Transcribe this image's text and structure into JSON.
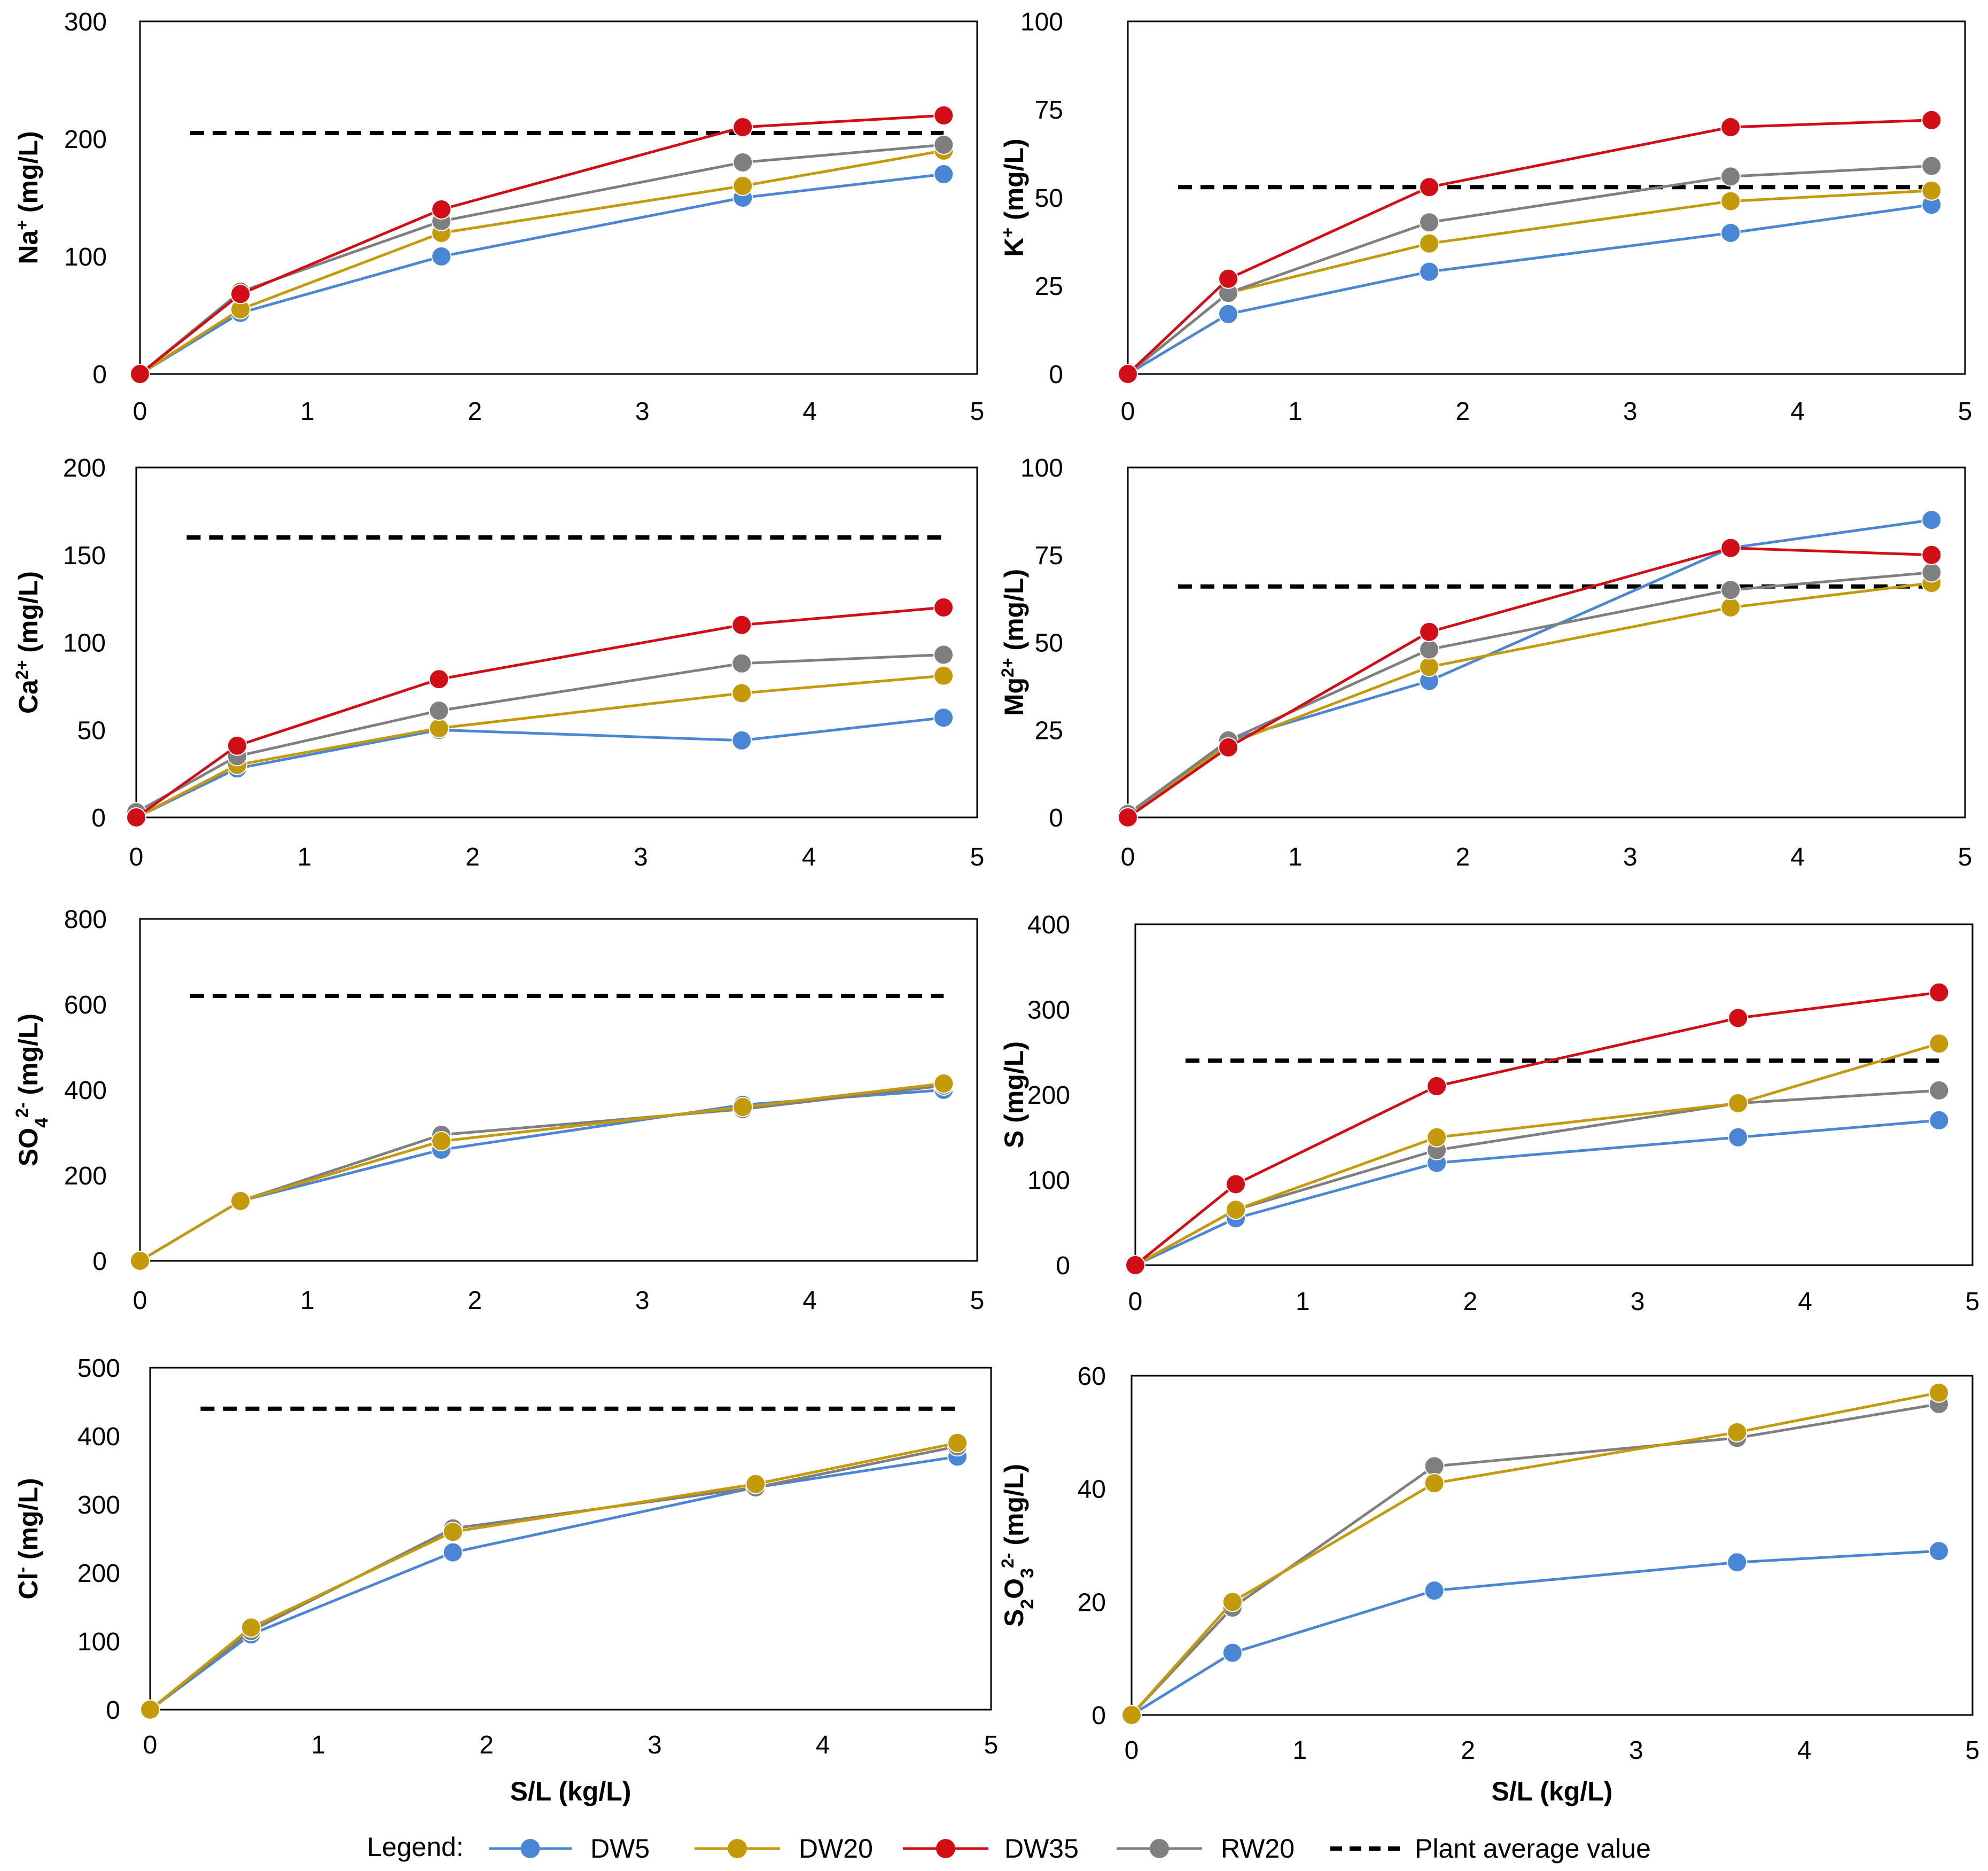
{
  "figure": {
    "legend": {
      "prefix": "Legend:",
      "items": [
        {
          "key": "DW5",
          "label": "DW5"
        },
        {
          "key": "DW20",
          "label": "DW20"
        },
        {
          "key": "DW35",
          "label": "DW35"
        },
        {
          "key": "RW20",
          "label": "RW20"
        },
        {
          "key": "plant",
          "label": "Plant average value"
        }
      ]
    },
    "colors": {
      "DW5": "#4A86D6",
      "DW20": "#C49A0B",
      "DW35": "#D10E15",
      "RW20": "#7F7F7F",
      "plant": "#000000"
    }
  },
  "chart_data": [
    {
      "id": "na",
      "type": "line",
      "ylabel": {
        "main": "Na",
        "sup": "+",
        "unit": " (mg/L)"
      },
      "xlabel": "",
      "xlim": [
        0,
        5
      ],
      "ylim": [
        0,
        300
      ],
      "xticks": [
        "0",
        "1",
        "2",
        "3",
        "4",
        "5"
      ],
      "yticks": [
        "0",
        "100",
        "200",
        "300"
      ],
      "x": [
        0,
        0.6,
        1.8,
        3.6,
        4.8
      ],
      "series": [
        {
          "name": "DW5",
          "values": [
            0,
            52,
            100,
            150,
            170
          ]
        },
        {
          "name": "DW20",
          "values": [
            0,
            55,
            120,
            160,
            190
          ]
        },
        {
          "name": "RW20",
          "values": [
            0,
            70,
            130,
            180,
            195
          ]
        },
        {
          "name": "DW35",
          "values": [
            0,
            68,
            140,
            210,
            220
          ]
        }
      ],
      "plant_average": 205
    },
    {
      "id": "k",
      "type": "line",
      "ylabel": {
        "main": "K",
        "sup": "+",
        "unit": " (mg/L)"
      },
      "xlabel": "",
      "xlim": [
        0,
        5
      ],
      "ylim": [
        0,
        100
      ],
      "xticks": [
        "0",
        "1",
        "2",
        "3",
        "4",
        "5"
      ],
      "yticks": [
        "0",
        "25",
        "50",
        "75",
        "100"
      ],
      "x": [
        0,
        0.6,
        1.8,
        3.6,
        4.8
      ],
      "series": [
        {
          "name": "DW5",
          "values": [
            0,
            17,
            29,
            40,
            48
          ]
        },
        {
          "name": "DW20",
          "values": [
            0,
            23,
            37,
            49,
            52
          ]
        },
        {
          "name": "RW20",
          "values": [
            0,
            23,
            43,
            56,
            59
          ]
        },
        {
          "name": "DW35",
          "values": [
            0,
            27,
            53,
            70,
            72
          ]
        }
      ],
      "plant_average": 53
    },
    {
      "id": "ca",
      "type": "line",
      "ylabel": {
        "main": "Ca",
        "sup": "2+",
        "unit": " (mg/L)"
      },
      "xlabel": "",
      "xlim": [
        0,
        5
      ],
      "ylim": [
        0,
        200
      ],
      "xticks": [
        "0",
        "1",
        "2",
        "3",
        "4",
        "5"
      ],
      "yticks": [
        "0",
        "50",
        "100",
        "150",
        "200"
      ],
      "x": [
        0,
        0.6,
        1.8,
        3.6,
        4.8
      ],
      "series": [
        {
          "name": "DW5",
          "values": [
            0,
            28,
            50,
            44,
            57
          ]
        },
        {
          "name": "DW20",
          "values": [
            0,
            30,
            51,
            71,
            81
          ]
        },
        {
          "name": "RW20",
          "values": [
            3,
            35,
            61,
            88,
            93
          ]
        },
        {
          "name": "DW35",
          "values": [
            0,
            41,
            79,
            110,
            120
          ]
        }
      ],
      "plant_average": 160
    },
    {
      "id": "mg",
      "type": "line",
      "ylabel": {
        "main": "Mg",
        "sup": "2+",
        "unit": " (mg/L)"
      },
      "xlabel": "",
      "xlim": [
        0,
        5
      ],
      "ylim": [
        0,
        100
      ],
      "xticks": [
        "0",
        "1",
        "2",
        "3",
        "4",
        "5"
      ],
      "yticks": [
        "0",
        "25",
        "50",
        "75",
        "100"
      ],
      "x": [
        0,
        0.6,
        1.8,
        3.6,
        4.8
      ],
      "series": [
        {
          "name": "DW5",
          "values": [
            0,
            22,
            39,
            77,
            85
          ]
        },
        {
          "name": "DW20",
          "values": [
            0,
            21,
            43,
            60,
            67
          ]
        },
        {
          "name": "RW20",
          "values": [
            1,
            22,
            48,
            65,
            70
          ]
        },
        {
          "name": "DW35",
          "values": [
            0,
            20,
            53,
            77,
            75
          ]
        }
      ],
      "plant_average": 66
    },
    {
      "id": "so4",
      "type": "line",
      "ylabel": {
        "main": "SO",
        "sub": "4",
        "sup": "2-",
        "unit": " (mg/L)"
      },
      "xlabel": "",
      "xlim": [
        0,
        5
      ],
      "ylim": [
        0,
        800
      ],
      "xticks": [
        "0",
        "1",
        "2",
        "3",
        "4",
        "5"
      ],
      "yticks": [
        "0",
        "200",
        "400",
        "600",
        "800"
      ],
      "x": [
        0,
        0.6,
        1.8,
        3.6,
        4.8
      ],
      "series": [
        {
          "name": "DW5",
          "values": [
            0,
            140,
            260,
            365,
            400
          ]
        },
        {
          "name": "RW20",
          "values": [
            0,
            140,
            295,
            355,
            410
          ]
        },
        {
          "name": "DW20",
          "values": [
            0,
            140,
            280,
            360,
            415
          ]
        }
      ],
      "plant_average": 620
    },
    {
      "id": "s",
      "type": "line",
      "ylabel": {
        "main": "S",
        "unit": " (mg/L)"
      },
      "xlabel": "",
      "xlim": [
        0,
        5
      ],
      "ylim": [
        0,
        400
      ],
      "xticks": [
        "0",
        "1",
        "2",
        "3",
        "4",
        "5"
      ],
      "yticks": [
        "0",
        "100",
        "200",
        "300",
        "400"
      ],
      "x": [
        0,
        0.6,
        1.8,
        3.6,
        4.8
      ],
      "series": [
        {
          "name": "DW5",
          "values": [
            0,
            55,
            120,
            150,
            170
          ]
        },
        {
          "name": "RW20",
          "values": [
            0,
            65,
            135,
            190,
            205
          ]
        },
        {
          "name": "DW20",
          "values": [
            0,
            65,
            150,
            190,
            260
          ]
        },
        {
          "name": "DW35",
          "values": [
            0,
            95,
            210,
            290,
            320
          ]
        }
      ],
      "plant_average": 240
    },
    {
      "id": "cl",
      "type": "line",
      "ylabel": {
        "main": "Cl",
        "sup": "-",
        "unit": " (mg/L)"
      },
      "xlabel": "S/L (kg/L)",
      "xlim": [
        0,
        5
      ],
      "ylim": [
        0,
        500
      ],
      "xticks": [
        "0",
        "1",
        "2",
        "3",
        "4",
        "5"
      ],
      "yticks": [
        "0",
        "100",
        "200",
        "300",
        "400",
        "500"
      ],
      "x": [
        0,
        0.6,
        1.8,
        3.6,
        4.8
      ],
      "series": [
        {
          "name": "DW5",
          "values": [
            0,
            110,
            230,
            325,
            370
          ]
        },
        {
          "name": "RW20",
          "values": [
            0,
            115,
            265,
            325,
            385
          ]
        },
        {
          "name": "DW20",
          "values": [
            0,
            120,
            260,
            330,
            390
          ]
        }
      ],
      "plant_average": 440
    },
    {
      "id": "s2o3",
      "type": "line",
      "ylabel": {
        "main": "S",
        "sub": "2",
        "main2": "O",
        "sub2": "3",
        "sup": "2-",
        "unit": " (mg/L)"
      },
      "xlabel": "S/L (kg/L)",
      "xlim": [
        0,
        5
      ],
      "ylim": [
        0,
        60
      ],
      "xticks": [
        "0",
        "1",
        "2",
        "3",
        "4",
        "5"
      ],
      "yticks": [
        "0",
        "20",
        "40",
        "60"
      ],
      "x": [
        0,
        0.6,
        1.8,
        3.6,
        4.8
      ],
      "series": [
        {
          "name": "DW5",
          "values": [
            0,
            11,
            22,
            27,
            29
          ]
        },
        {
          "name": "RW20",
          "values": [
            0,
            19,
            44,
            49,
            55
          ]
        },
        {
          "name": "DW20",
          "values": [
            0,
            20,
            41,
            50,
            57
          ]
        }
      ],
      "plant_average": null
    }
  ]
}
